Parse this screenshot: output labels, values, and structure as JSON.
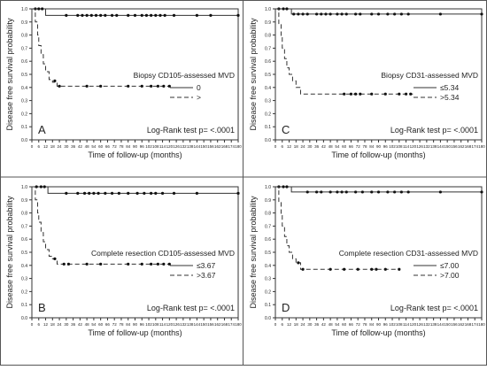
{
  "chart_data": [
    {
      "type": "line",
      "panel": "A",
      "legend_title": "Biopsy CD105-assessed MVD",
      "legend_entries": [
        "0",
        ">"
      ],
      "logrank": "Log-Rank test p= <.0001",
      "ylabel": "Disease free survival probability",
      "xlabel": "Time of follow-up (months)",
      "xlim": [
        0,
        180
      ],
      "ylim": [
        0,
        1
      ],
      "xticks": [
        "0",
        "6",
        "12",
        "18",
        "24",
        "30",
        "36",
        "42",
        "48",
        "54",
        "60",
        "66",
        "72",
        "78",
        "84",
        "90",
        "96",
        "102",
        "108",
        "114",
        "120",
        "126",
        "132",
        "138",
        "144",
        "150",
        "156",
        "162",
        "168",
        "174",
        "180"
      ],
      "yticks": [
        "0.0",
        "0.1",
        "0.2",
        "0.3",
        "0.4",
        "0.5",
        "0.6",
        "0.7",
        "0.8",
        "0.9",
        "1.0"
      ],
      "series": [
        {
          "name": "0",
          "style": "solid",
          "x": [
            0,
            12,
            180
          ],
          "y": [
            1.0,
            0.95,
            0.95
          ],
          "censored": [
            [
              3,
              1.0
            ],
            [
              6,
              1.0
            ],
            [
              9,
              1.0
            ],
            [
              30,
              0.95
            ],
            [
              40,
              0.95
            ],
            [
              44,
              0.95
            ],
            [
              48,
              0.95
            ],
            [
              52,
              0.95
            ],
            [
              56,
              0.95
            ],
            [
              60,
              0.95
            ],
            [
              64,
              0.95
            ],
            [
              70,
              0.95
            ],
            [
              74,
              0.95
            ],
            [
              84,
              0.95
            ],
            [
              90,
              0.95
            ],
            [
              96,
              0.95
            ],
            [
              100,
              0.95
            ],
            [
              104,
              0.95
            ],
            [
              108,
              0.95
            ],
            [
              112,
              0.95
            ],
            [
              116,
              0.95
            ],
            [
              124,
              0.95
            ],
            [
              144,
              0.95
            ],
            [
              156,
              0.95
            ],
            [
              180,
              0.95
            ]
          ]
        },
        {
          "name": ">",
          "style": "dashed",
          "x": [
            0,
            3,
            5,
            6,
            8,
            10,
            12,
            15,
            18,
            22,
            120
          ],
          "y": [
            1.0,
            0.9,
            0.8,
            0.72,
            0.65,
            0.58,
            0.52,
            0.46,
            0.44,
            0.41,
            0.41
          ],
          "censored": [
            [
              20,
              0.45
            ],
            [
              24,
              0.41
            ],
            [
              48,
              0.41
            ],
            [
              60,
              0.41
            ],
            [
              84,
              0.41
            ],
            [
              96,
              0.41
            ],
            [
              104,
              0.41
            ],
            [
              110,
              0.41
            ],
            [
              115,
              0.41
            ],
            [
              120,
              0.41
            ]
          ]
        }
      ]
    },
    {
      "type": "line",
      "panel": "C",
      "legend_title": "Biopsy CD31-assessed MVD",
      "legend_entries": [
        "≤5.34",
        ">5.34"
      ],
      "logrank": "Log-Rank test p= <.0001",
      "ylabel": "Disease free survival probability",
      "xlabel": "Time of follow-up (months)",
      "xlim": [
        0,
        180
      ],
      "ylim": [
        0,
        1
      ],
      "xticks": [
        "0",
        "6",
        "12",
        "18",
        "24",
        "30",
        "36",
        "42",
        "48",
        "54",
        "60",
        "66",
        "72",
        "78",
        "84",
        "90",
        "96",
        "102",
        "108",
        "114",
        "120",
        "126",
        "132",
        "138",
        "144",
        "150",
        "156",
        "162",
        "168",
        "174",
        "180"
      ],
      "yticks": [
        "0.0",
        "0.1",
        "0.2",
        "0.3",
        "0.4",
        "0.5",
        "0.6",
        "0.7",
        "0.8",
        "0.9",
        "1.0"
      ],
      "series": [
        {
          "name": "≤5.34",
          "style": "solid",
          "x": [
            0,
            14,
            180
          ],
          "y": [
            1.0,
            0.96,
            0.96
          ],
          "censored": [
            [
              3,
              1.0
            ],
            [
              7,
              1.0
            ],
            [
              10,
              1.0
            ],
            [
              16,
              0.96
            ],
            [
              20,
              0.96
            ],
            [
              24,
              0.96
            ],
            [
              28,
              0.96
            ],
            [
              36,
              0.96
            ],
            [
              40,
              0.96
            ],
            [
              44,
              0.96
            ],
            [
              48,
              0.96
            ],
            [
              54,
              0.96
            ],
            [
              58,
              0.96
            ],
            [
              62,
              0.96
            ],
            [
              70,
              0.96
            ],
            [
              74,
              0.96
            ],
            [
              84,
              0.96
            ],
            [
              90,
              0.96
            ],
            [
              98,
              0.96
            ],
            [
              104,
              0.96
            ],
            [
              110,
              0.96
            ],
            [
              116,
              0.96
            ],
            [
              144,
              0.96
            ],
            [
              180,
              0.96
            ]
          ]
        },
        {
          "name": ">5.34",
          "style": "dashed",
          "x": [
            0,
            3,
            5,
            6,
            8,
            10,
            12,
            15,
            18,
            22,
            120
          ],
          "y": [
            1.0,
            0.88,
            0.78,
            0.7,
            0.62,
            0.55,
            0.5,
            0.45,
            0.4,
            0.35,
            0.35
          ],
          "censored": [
            [
              60,
              0.35
            ],
            [
              66,
              0.35
            ],
            [
              70,
              0.35
            ],
            [
              74,
              0.35
            ],
            [
              84,
              0.35
            ],
            [
              96,
              0.35
            ],
            [
              108,
              0.35
            ],
            [
              114,
              0.35
            ],
            [
              118,
              0.35
            ]
          ]
        }
      ]
    },
    {
      "type": "line",
      "panel": "B",
      "legend_title": "Complete resection CD105-assessed MVD",
      "legend_entries": [
        "≤3.67",
        ">3.67"
      ],
      "logrank": "Log-Rank test p= <.0001",
      "ylabel": "Disease free survival probability",
      "xlabel": "Time of follow-up (months)",
      "xlim": [
        0,
        180
      ],
      "ylim": [
        0,
        1
      ],
      "xticks": [
        "0",
        "6",
        "12",
        "18",
        "24",
        "30",
        "36",
        "42",
        "48",
        "54",
        "60",
        "66",
        "72",
        "78",
        "84",
        "90",
        "96",
        "102",
        "108",
        "114",
        "120",
        "126",
        "132",
        "138",
        "144",
        "150",
        "156",
        "162",
        "168",
        "174",
        "180"
      ],
      "yticks": [
        "0.0",
        "0.1",
        "0.2",
        "0.3",
        "0.4",
        "0.5",
        "0.6",
        "0.7",
        "0.8",
        "0.9",
        "1.0"
      ],
      "series": [
        {
          "name": "≤3.67",
          "style": "solid",
          "x": [
            0,
            14,
            180
          ],
          "y": [
            1.0,
            0.95,
            0.95
          ],
          "censored": [
            [
              4,
              1.0
            ],
            [
              8,
              1.0
            ],
            [
              11,
              1.0
            ],
            [
              30,
              0.95
            ],
            [
              40,
              0.95
            ],
            [
              46,
              0.95
            ],
            [
              50,
              0.95
            ],
            [
              54,
              0.95
            ],
            [
              58,
              0.95
            ],
            [
              64,
              0.95
            ],
            [
              70,
              0.95
            ],
            [
              76,
              0.95
            ],
            [
              84,
              0.95
            ],
            [
              92,
              0.95
            ],
            [
              98,
              0.95
            ],
            [
              104,
              0.95
            ],
            [
              108,
              0.95
            ],
            [
              114,
              0.95
            ],
            [
              124,
              0.95
            ],
            [
              144,
              0.95
            ],
            [
              180,
              0.95
            ]
          ]
        },
        {
          "name": ">3.67",
          "style": "dashed",
          "x": [
            0,
            3,
            5,
            6,
            8,
            10,
            12,
            15,
            18,
            22,
            120
          ],
          "y": [
            1.0,
            0.9,
            0.8,
            0.73,
            0.65,
            0.58,
            0.52,
            0.47,
            0.45,
            0.41,
            0.41
          ],
          "censored": [
            [
              20,
              0.45
            ],
            [
              28,
              0.41
            ],
            [
              32,
              0.41
            ],
            [
              48,
              0.41
            ],
            [
              60,
              0.41
            ],
            [
              84,
              0.41
            ],
            [
              96,
              0.41
            ],
            [
              104,
              0.41
            ],
            [
              110,
              0.41
            ],
            [
              115,
              0.41
            ],
            [
              120,
              0.41
            ]
          ]
        }
      ]
    },
    {
      "type": "line",
      "panel": "D",
      "legend_title": "Complete resection CD31-assessed MVD",
      "legend_entries": [
        "≤7.00",
        ">7.00"
      ],
      "logrank": "Log-Rank test p= <.0001",
      "ylabel": "Disease free survival probability",
      "xlabel": "Time of follow-up (months)",
      "xlim": [
        0,
        180
      ],
      "ylim": [
        0,
        1
      ],
      "xticks": [
        "0",
        "6",
        "12",
        "18",
        "24",
        "30",
        "36",
        "42",
        "48",
        "54",
        "60",
        "66",
        "72",
        "78",
        "84",
        "90",
        "96",
        "102",
        "108",
        "114",
        "120",
        "126",
        "132",
        "138",
        "144",
        "150",
        "156",
        "162",
        "168",
        "174",
        "180"
      ],
      "yticks": [
        "0.0",
        "0.1",
        "0.2",
        "0.3",
        "0.4",
        "0.5",
        "0.6",
        "0.7",
        "0.8",
        "0.9",
        "1.0"
      ],
      "series": [
        {
          "name": "≤7.00",
          "style": "solid",
          "x": [
            0,
            14,
            180
          ],
          "y": [
            1.0,
            0.96,
            0.96
          ],
          "censored": [
            [
              3,
              1.0
            ],
            [
              7,
              1.0
            ],
            [
              10,
              1.0
            ],
            [
              28,
              0.96
            ],
            [
              36,
              0.96
            ],
            [
              40,
              0.96
            ],
            [
              48,
              0.96
            ],
            [
              54,
              0.96
            ],
            [
              58,
              0.96
            ],
            [
              62,
              0.96
            ],
            [
              70,
              0.96
            ],
            [
              76,
              0.96
            ],
            [
              84,
              0.96
            ],
            [
              90,
              0.96
            ],
            [
              98,
              0.96
            ],
            [
              104,
              0.96
            ],
            [
              110,
              0.96
            ],
            [
              116,
              0.96
            ],
            [
              144,
              0.96
            ],
            [
              180,
              0.96
            ]
          ]
        },
        {
          "name": ">7.00",
          "style": "dashed",
          "x": [
            0,
            3,
            5,
            6,
            8,
            10,
            12,
            15,
            18,
            22,
            108
          ],
          "y": [
            1.0,
            0.88,
            0.78,
            0.7,
            0.62,
            0.55,
            0.5,
            0.45,
            0.42,
            0.37,
            0.37
          ],
          "censored": [
            [
              20,
              0.42
            ],
            [
              24,
              0.37
            ],
            [
              48,
              0.37
            ],
            [
              60,
              0.37
            ],
            [
              72,
              0.37
            ],
            [
              84,
              0.37
            ],
            [
              88,
              0.37
            ],
            [
              96,
              0.37
            ],
            [
              108,
              0.37
            ]
          ]
        }
      ]
    }
  ]
}
